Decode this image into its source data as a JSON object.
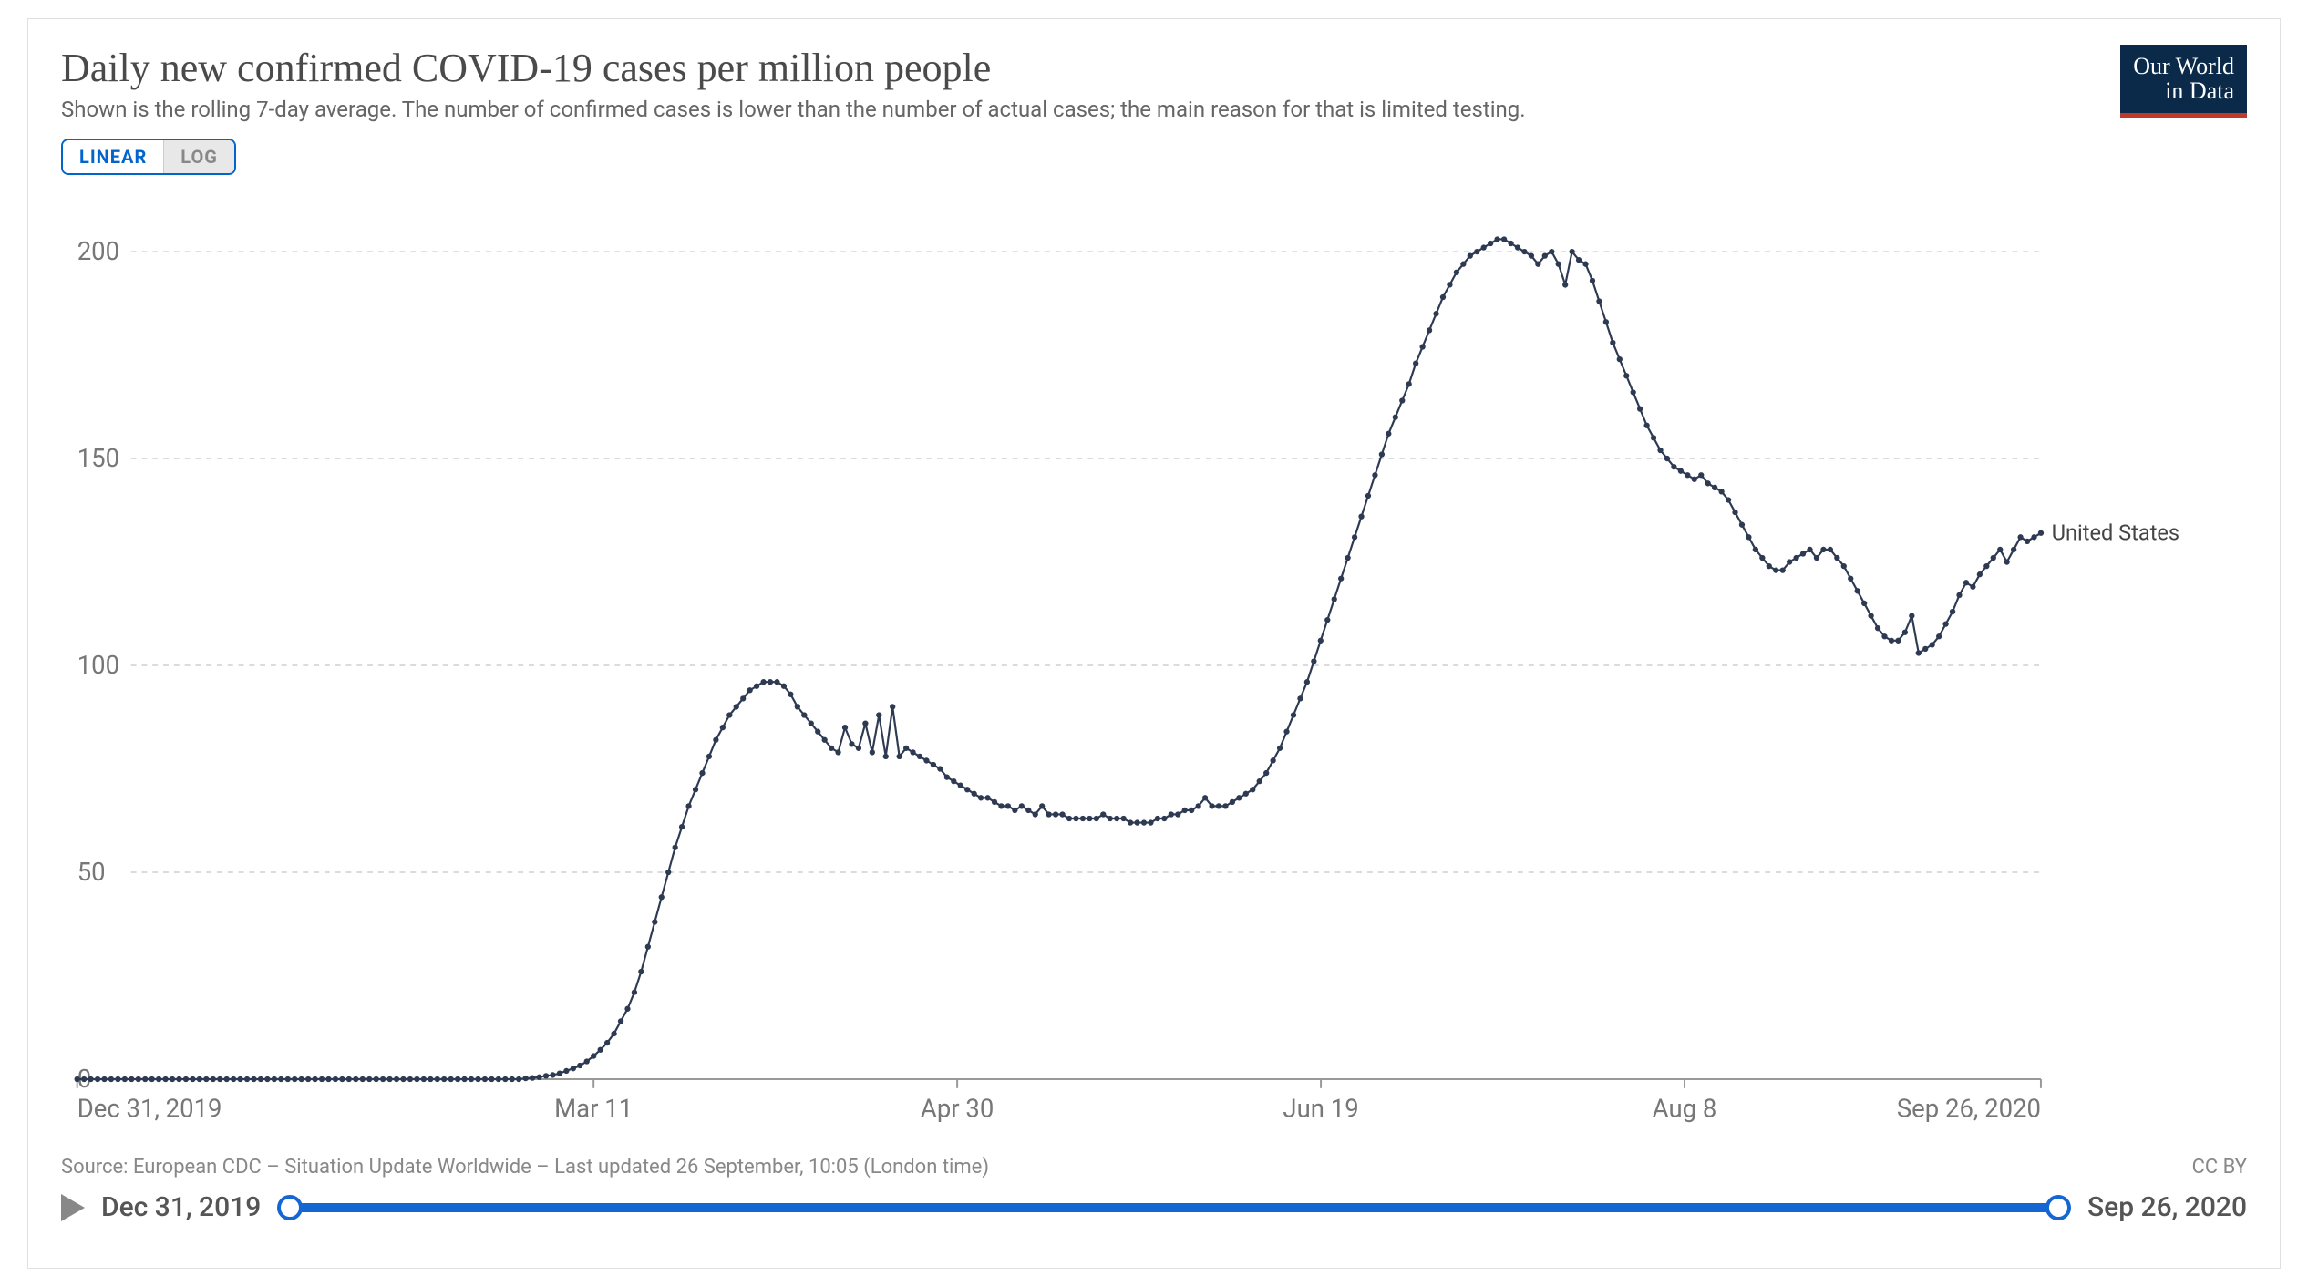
{
  "title": "Daily new confirmed COVID-19 cases per million people",
  "subtitle": "Shown is the rolling 7-day average. The number of confirmed cases is lower than the number of actual cases; the main reason for that is limited testing.",
  "logo": {
    "line1": "Our World",
    "line2": "in Data",
    "bg": "#0b2a4a",
    "accent": "#c0392b"
  },
  "scale_toggle": {
    "options": [
      "LINEAR",
      "LOG"
    ],
    "active": "LINEAR",
    "active_color": "#0066cc"
  },
  "chart": {
    "type": "line",
    "background_color": "#ffffff",
    "grid_color": "#cfcfcf",
    "axis_color": "#999999",
    "ylim": [
      0,
      210
    ],
    "yticks": [
      0,
      50,
      100,
      150,
      200
    ],
    "x_domain_days": [
      0,
      270
    ],
    "xticks": [
      {
        "day": 0,
        "label": "Dec 31, 2019"
      },
      {
        "day": 71,
        "label": "Mar 11"
      },
      {
        "day": 121,
        "label": "Apr 30"
      },
      {
        "day": 171,
        "label": "Jun 19"
      },
      {
        "day": 221,
        "label": "Aug 8"
      },
      {
        "day": 270,
        "label": "Sep 26, 2020"
      }
    ],
    "series": [
      {
        "name": "United States",
        "label": "United States",
        "color": "#2e3a52",
        "line_width": 2.2,
        "marker_radius": 3.2,
        "values": [
          0,
          0,
          0,
          0,
          0,
          0,
          0,
          0,
          0,
          0,
          0,
          0,
          0,
          0,
          0,
          0,
          0,
          0,
          0,
          0,
          0,
          0,
          0,
          0,
          0,
          0,
          0,
          0,
          0,
          0,
          0,
          0,
          0,
          0,
          0,
          0,
          0,
          0,
          0,
          0,
          0,
          0,
          0,
          0,
          0,
          0,
          0,
          0,
          0,
          0,
          0,
          0,
          0,
          0,
          0,
          0,
          0,
          0,
          0,
          0,
          0,
          0,
          0,
          0,
          0,
          0,
          0.2,
          0.3,
          0.5,
          0.8,
          1,
          1.4,
          2,
          2.6,
          3.3,
          4.3,
          5.6,
          7.1,
          8.8,
          11,
          14,
          17,
          21,
          26,
          32,
          38,
          44,
          50,
          56,
          61,
          66,
          70,
          74,
          78,
          82,
          85,
          88,
          90,
          92,
          94,
          95,
          96,
          96,
          96,
          95,
          93,
          90,
          88,
          86,
          84,
          82,
          80,
          79,
          85,
          81,
          80,
          86,
          79,
          88,
          78,
          90,
          78,
          80,
          79,
          78,
          77,
          76,
          75,
          73,
          72,
          71,
          70,
          69,
          68,
          68,
          67,
          66,
          66,
          65,
          66,
          65,
          64,
          66,
          64,
          64,
          64,
          63,
          63,
          63,
          63,
          63,
          64,
          63,
          63,
          63,
          62,
          62,
          62,
          62,
          63,
          63,
          64,
          64,
          65,
          65,
          66,
          68,
          66,
          66,
          66,
          67,
          68,
          69,
          70,
          72,
          74,
          77,
          80,
          84,
          88,
          92,
          96,
          101,
          106,
          111,
          116,
          121,
          126,
          131,
          136,
          141,
          146,
          151,
          156,
          160,
          164,
          168,
          173,
          177,
          181,
          185,
          189,
          192,
          195,
          197,
          199,
          200,
          201,
          202,
          203,
          203,
          202,
          201,
          200,
          199,
          197,
          199,
          200,
          197,
          192,
          200,
          198,
          197,
          193,
          188,
          183,
          178,
          174,
          170,
          166,
          162,
          158,
          155,
          152,
          150,
          148,
          147,
          146,
          145,
          146,
          144,
          143,
          142,
          140,
          137,
          134,
          131,
          128,
          126,
          124,
          123,
          123,
          125,
          126,
          127,
          128,
          126,
          128,
          128,
          126,
          124,
          121,
          118,
          115,
          112,
          109,
          107,
          106,
          106,
          108,
          112,
          103,
          104,
          105,
          107,
          110,
          113,
          117,
          120,
          119,
          122,
          124,
          126,
          128,
          125,
          128,
          131,
          130,
          131,
          132
        ]
      }
    ]
  },
  "footer": {
    "source": "Source: European CDC – Situation Update Worldwide – Last updated 26 September, 10:05 (London time)",
    "license": "CC BY"
  },
  "slider": {
    "start_label": "Dec 31, 2019",
    "end_label": "Sep 26, 2020",
    "bar_color": "#1467d2",
    "handle_border": "#1467d2"
  }
}
